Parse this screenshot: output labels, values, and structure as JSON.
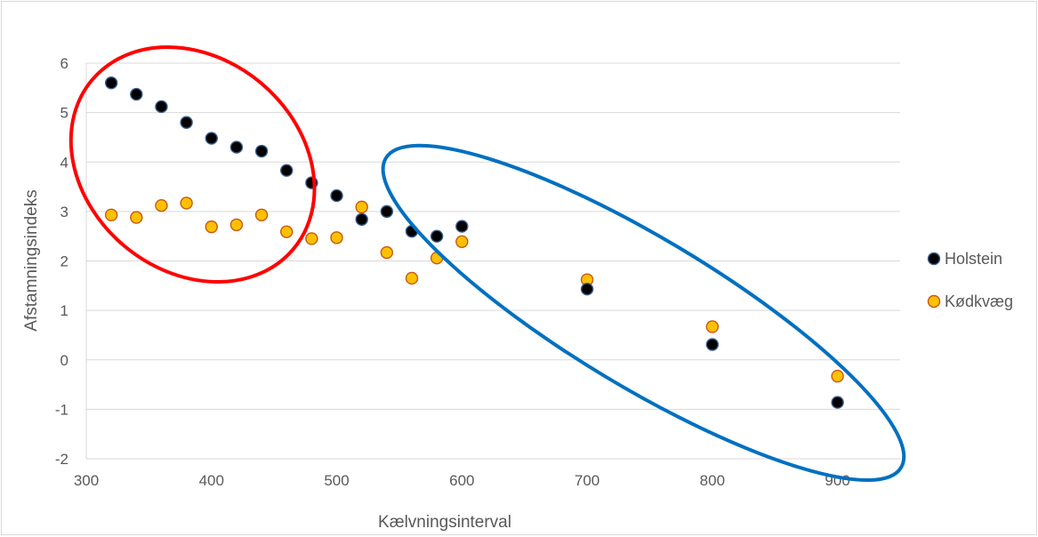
{
  "chart_data": {
    "type": "scatter",
    "title": "",
    "xlabel": "Kælvningsinterval",
    "ylabel": "Afstamningsindeks",
    "xlim": [
      300,
      950
    ],
    "ylim": [
      -2,
      6
    ],
    "x_ticks": [
      300,
      400,
      500,
      600,
      700,
      800,
      900
    ],
    "y_ticks": [
      -2,
      -1,
      0,
      1,
      2,
      3,
      4,
      5,
      6
    ],
    "x_tick_labels": [
      "300",
      "400",
      "500",
      "600",
      "700",
      "800",
      "900"
    ],
    "y_tick_labels": [
      "-2",
      "-1",
      "0",
      "1",
      "2",
      "3",
      "4",
      "5",
      "6"
    ],
    "grid": "horizontal",
    "legend_position": "right",
    "series": [
      {
        "name": "Holstein",
        "fill": "#000000",
        "stroke": "#3a5f8f",
        "points": [
          [
            320,
            5.6
          ],
          [
            340,
            5.37
          ],
          [
            360,
            5.12
          ],
          [
            380,
            4.8
          ],
          [
            400,
            4.48
          ],
          [
            420,
            4.3
          ],
          [
            440,
            4.22
          ],
          [
            460,
            3.83
          ],
          [
            480,
            3.58
          ],
          [
            500,
            3.32
          ],
          [
            520,
            2.84
          ],
          [
            540,
            3.0
          ],
          [
            560,
            2.6
          ],
          [
            580,
            2.5
          ],
          [
            600,
            2.7
          ],
          [
            700,
            1.43
          ],
          [
            800,
            0.31
          ],
          [
            900,
            -0.86
          ]
        ]
      },
      {
        "name": "Kødkvæg",
        "fill": "#ffc000",
        "stroke": "#c55a11",
        "points": [
          [
            320,
            2.93
          ],
          [
            340,
            2.88
          ],
          [
            360,
            3.12
          ],
          [
            380,
            3.17
          ],
          [
            400,
            2.69
          ],
          [
            420,
            2.73
          ],
          [
            440,
            2.93
          ],
          [
            460,
            2.59
          ],
          [
            480,
            2.45
          ],
          [
            500,
            2.47
          ],
          [
            520,
            3.09
          ],
          [
            540,
            2.17
          ],
          [
            560,
            1.65
          ],
          [
            580,
            2.06
          ],
          [
            600,
            2.39
          ],
          [
            700,
            1.62
          ],
          [
            800,
            0.67
          ],
          [
            900,
            -0.33
          ]
        ]
      }
    ],
    "annotations": [
      {
        "shape": "ellipse",
        "color": "#ff0000",
        "cx": 385,
        "cy": 3.95,
        "rx": 105,
        "ry": 2.15,
        "rotation_deg": 40
      },
      {
        "shape": "ellipse",
        "color": "#0070c0",
        "cx": 745,
        "cy": 0.95,
        "rx": 240,
        "ry": 1.5,
        "rotation_deg": 31
      }
    ]
  }
}
